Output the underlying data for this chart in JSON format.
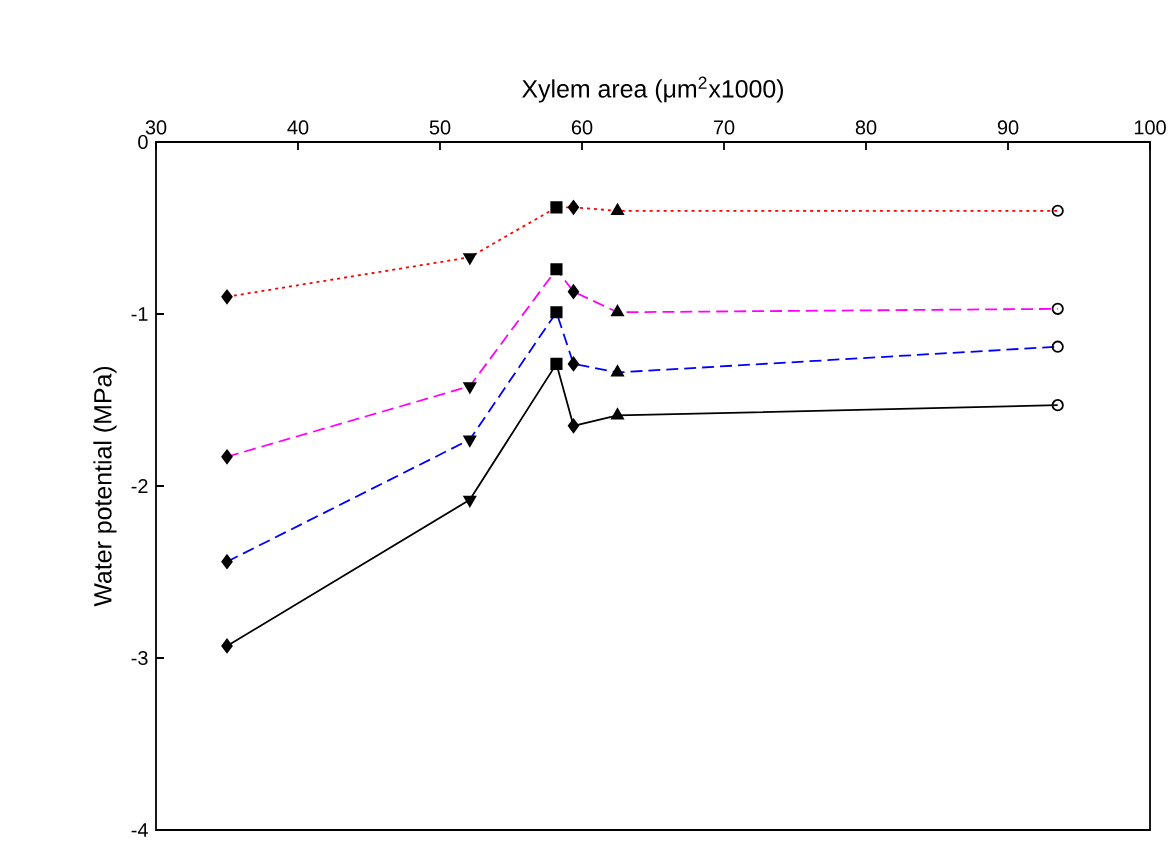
{
  "chart_data": {
    "type": "line",
    "xlabel": "Xylem area (μm$^{2}$x1000)",
    "ylabel": "Water potential (MPa)",
    "xlim": [
      30,
      100
    ],
    "xticks": [
      30,
      40,
      50,
      60,
      70,
      80,
      90,
      100
    ],
    "ylim": [
      -4,
      0
    ],
    "yticks": [
      0,
      -1,
      -2,
      -3,
      -4
    ],
    "series": [
      {
        "color": "#ff0000",
        "line_style": "dotted",
        "marker": "none",
        "x": [
          35,
          52.1,
          58.2,
          59.4,
          62.5,
          93.5
        ],
        "values": [
          -0.9,
          -0.67,
          -0.38,
          -0.38,
          -0.4,
          -0.4
        ]
      },
      {
        "color": "#ff00ff",
        "line_style": "dashed",
        "marker": "none",
        "x": [
          35,
          52.1,
          58.2,
          59.4,
          62.5,
          93.5
        ],
        "values": [
          -1.83,
          -1.42,
          -0.74,
          -0.87,
          -0.99,
          -0.97
        ]
      },
      {
        "color": "#0000ff",
        "line_style": "dashed",
        "marker": "none",
        "x": [
          35,
          52.1,
          58.2,
          59.4,
          62.5,
          93.5
        ],
        "values": [
          -2.44,
          -1.73,
          -0.99,
          -1.29,
          -1.34,
          -1.19
        ]
      },
      {
        "color": "#000000",
        "line_style": "solid",
        "marker": "none",
        "x": [
          35,
          52.1,
          58.2,
          59.4,
          62.5,
          93.5
        ],
        "values": [
          -2.93,
          -2.08,
          -1.29,
          -1.65,
          -1.59,
          -1.53
        ]
      },
      {
        "type": "scatter",
        "color": "#000000",
        "marker": "diamond",
        "x": [
          35,
          35,
          35,
          35
        ],
        "values": [
          -0.9,
          -1.83,
          -2.44,
          -2.93
        ]
      },
      {
        "type": "scatter",
        "color": "#000000",
        "marker": "triangle_down",
        "x": [
          52.1,
          52.1,
          52.1,
          52.1
        ],
        "values": [
          -0.67,
          -1.42,
          -1.73,
          -2.08
        ]
      },
      {
        "type": "scatter",
        "color": "#000000",
        "marker": "square",
        "x": [
          58.2,
          58.2,
          58.2,
          58.2
        ],
        "values": [
          -0.38,
          -0.74,
          -0.99,
          -1.29
        ]
      },
      {
        "type": "scatter",
        "color": "#000000",
        "marker": "diamond",
        "x": [
          59.4,
          59.4,
          59.4,
          59.4
        ],
        "values": [
          -0.38,
          -0.87,
          -1.29,
          -1.65
        ]
      },
      {
        "type": "scatter",
        "color": "#000000",
        "marker": "triangle",
        "x": [
          62.5,
          62.5,
          62.5,
          62.5
        ],
        "values": [
          -0.4,
          -0.99,
          -1.34,
          -1.59
        ]
      },
      {
        "type": "scatter",
        "color": "#000000",
        "marker": "circle",
        "x": [
          93.5,
          93.5,
          93.5,
          93.5
        ],
        "values": [
          -0.4,
          -0.97,
          -1.19,
          -1.53
        ]
      }
    ]
  }
}
